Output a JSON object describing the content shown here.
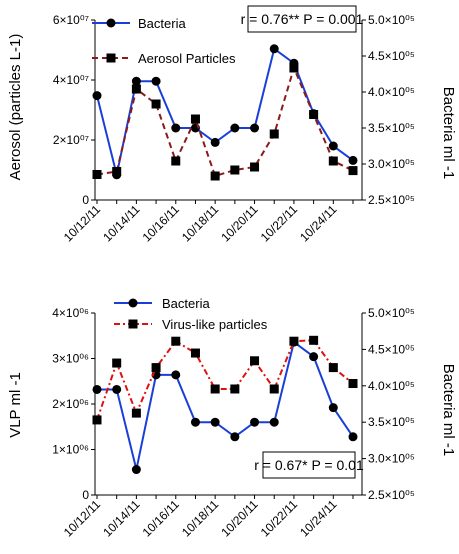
{
  "colors": {
    "bacteria": "#1a3fd9",
    "aerosol": "#8b1a1a",
    "vlp": "#e01010",
    "marker": "#000000"
  },
  "chart_data": [
    {
      "type": "line",
      "x_dates": [
        "10/12/11",
        "10/13/11",
        "10/14/11",
        "10/15/11",
        "10/16/11",
        "10/17/11",
        "10/18/11",
        "10/19/11",
        "10/20/11",
        "10/21/11",
        "10/22/11",
        "10/23/11",
        "10/24/11",
        "10/25/11"
      ],
      "xtick_labels": [
        "10/12/11",
        "10/14/11",
        "10/16/11",
        "10/18/11",
        "10/20/11",
        "10/22/11",
        "10/24/11"
      ],
      "ylabel_left": "Aerosol  (particles L-1)",
      "ylabel_right": "Bacteria ml -1",
      "ylim_left": [
        0,
        60000000
      ],
      "ylim_right": [
        250000,
        500000
      ],
      "yticks_left": [
        "0",
        "2×10⁰⁷",
        "4×10⁰⁷",
        "6×10⁰⁷"
      ],
      "yticks_right": [
        "2.5×10⁰⁵",
        "3.0×10⁰⁵",
        "3.5×10⁰⁵",
        "4.0×10⁰⁵",
        "4.5×10⁰⁵",
        "5.0×10⁰⁵"
      ],
      "annotation": "r = 0.76**  P = 0.001",
      "series": [
        {
          "name": "Bacteria",
          "axis": "right",
          "style": "solid-circle",
          "x": [
            "10/12/11",
            "10/13/11",
            "10/14/11",
            "10/15/11",
            "10/16/11",
            "10/17/11",
            "10/18/11",
            "10/19/11",
            "10/20/11",
            "10/21/11",
            "10/22/11",
            "10/23/11",
            "10/24/11",
            "10/25/11"
          ],
          "values": [
            395000,
            285000,
            415000,
            415000,
            350000,
            350000,
            330000,
            350000,
            350000,
            460000,
            440000,
            370000,
            325000,
            305000
          ]
        },
        {
          "name": "Aerosol Particles",
          "axis": "left",
          "style": "dashed-square",
          "x": [
            "10/12/11",
            "10/13/11",
            "10/14/11",
            "10/15/11",
            "10/16/11",
            "10/17/11",
            "10/18/11",
            "10/19/11",
            "10/20/11",
            "10/21/11",
            "10/22/11",
            "10/23/11",
            "10/24/11",
            "10/25/11"
          ],
          "values": [
            8500000,
            9500000,
            37000000,
            32000000,
            13000000,
            27000000,
            8000000,
            10000000,
            11000000,
            22000000,
            44000000,
            28500000,
            13000000,
            9800000
          ]
        }
      ]
    },
    {
      "type": "line",
      "x_dates": [
        "10/12/11",
        "10/13/11",
        "10/14/11",
        "10/15/11",
        "10/16/11",
        "10/17/11",
        "10/18/11",
        "10/19/11",
        "10/20/11",
        "10/21/11",
        "10/22/11",
        "10/23/11",
        "10/24/11",
        "10/25/11"
      ],
      "xtick_labels": [
        "10/12/11",
        "10/14/11",
        "10/16/11",
        "10/18/11",
        "10/20/11",
        "10/22/11",
        "10/24/11"
      ],
      "ylabel_left": "VLP ml -1",
      "ylabel_right": "Bacteria ml -1",
      "ylim_left": [
        0,
        4000000
      ],
      "ylim_right": [
        250000,
        500000
      ],
      "yticks_left": [
        "0",
        "1×10⁰⁶",
        "2×10⁰⁶",
        "3×10⁰⁶",
        "4×10⁰⁶"
      ],
      "yticks_right": [
        "2.5×10⁰⁵",
        "3.0×10⁰⁵",
        "3.5×10⁰⁵",
        "4.0×10⁰⁵",
        "4.5×10⁰⁵",
        "5.0×10⁰⁵"
      ],
      "annotation": "r = 0.67*  P = 0.01",
      "series": [
        {
          "name": "Bacteria",
          "axis": "right",
          "style": "solid-circle",
          "x": [
            "10/12/11",
            "10/13/11",
            "10/14/11",
            "10/15/11",
            "10/16/11",
            "10/17/11",
            "10/18/11",
            "10/19/11",
            "10/20/11",
            "10/21/11",
            "10/22/11",
            "10/23/11",
            "10/24/11",
            "10/25/11"
          ],
          "values": [
            395000,
            395000,
            285000,
            415000,
            415000,
            350000,
            350000,
            330000,
            350000,
            350000,
            460000,
            440000,
            370000,
            330000
          ]
        },
        {
          "name": "Virus-like particles",
          "axis": "left",
          "style": "dashdot-square",
          "x": [
            "10/12/11",
            "10/13/11",
            "10/14/11",
            "10/15/11",
            "10/16/11",
            "10/17/11",
            "10/18/11",
            "10/19/11",
            "10/20/11",
            "10/21/11",
            "10/22/11",
            "10/23/11",
            "10/24/11",
            "10/25/11"
          ],
          "values": [
            1650000,
            2900000,
            1800000,
            2800000,
            3380000,
            3120000,
            2330000,
            2330000,
            2950000,
            2330000,
            3380000,
            3400000,
            2800000,
            2450000
          ]
        }
      ]
    }
  ]
}
